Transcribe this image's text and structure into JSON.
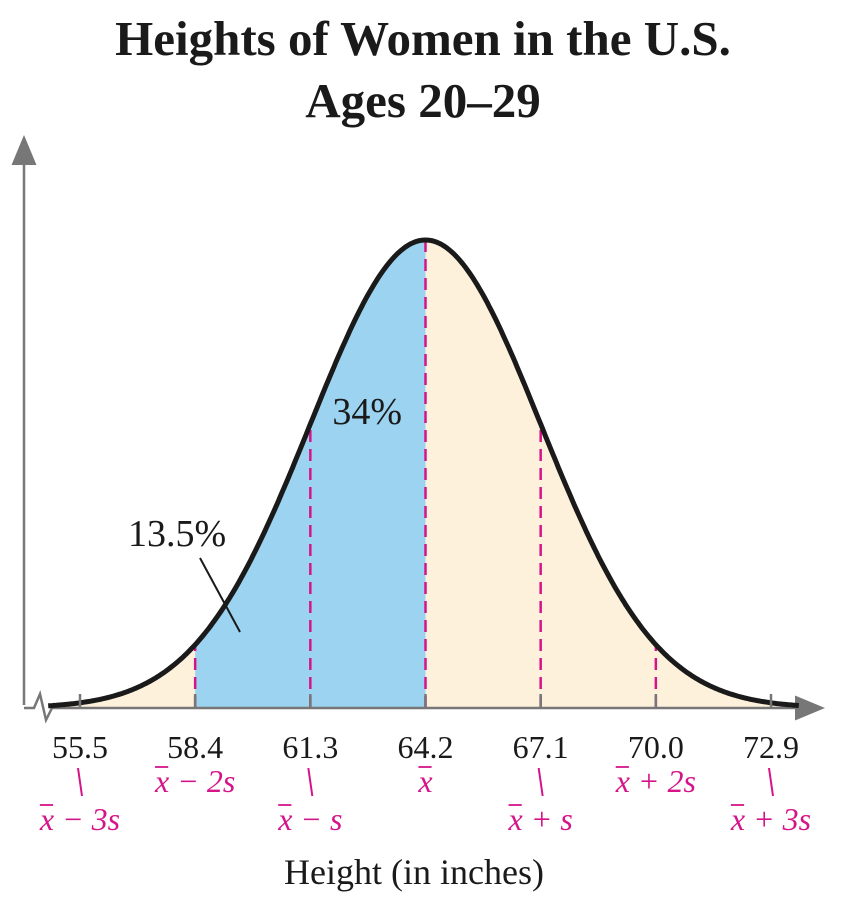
{
  "chart_data": {
    "type": "area",
    "title": "Heights of Women in the U.S.",
    "subtitle": "Ages 20–29",
    "xlabel": "Height (in inches)",
    "ylabel": "",
    "mean": 64.2,
    "sd": 2.9,
    "xlim": [
      54.7,
      73.6
    ],
    "ticks": [
      {
        "value": 55.5,
        "label": "55.5",
        "symbol_var": "x",
        "symbol_rest": "− 3s",
        "dashed": false
      },
      {
        "value": 58.4,
        "label": "58.4",
        "symbol_var": "x",
        "symbol_rest": "− 2s",
        "dashed": true
      },
      {
        "value": 61.3,
        "label": "61.3",
        "symbol_var": "x",
        "symbol_rest": "− s",
        "dashed": true
      },
      {
        "value": 64.2,
        "label": "64.2",
        "symbol_var": "x",
        "symbol_rest": "",
        "dashed": true
      },
      {
        "value": 67.1,
        "label": "67.1",
        "symbol_var": "x",
        "symbol_rest": "+ s",
        "dashed": true
      },
      {
        "value": 70.0,
        "label": "70.0",
        "symbol_var": "x",
        "symbol_rest": "+ 2s",
        "dashed": true
      },
      {
        "value": 72.9,
        "label": "72.9",
        "symbol_var": "x",
        "symbol_rest": "+ 3s",
        "dashed": false
      }
    ],
    "shaded_regions": [
      {
        "from": 58.4,
        "to": 64.2,
        "color": "#9bd3f0"
      }
    ],
    "annotations": [
      {
        "text": "34%",
        "region": [
          61.3,
          64.2
        ]
      },
      {
        "text": "13.5%",
        "region": [
          58.4,
          61.3
        ]
      }
    ],
    "colors": {
      "base_fill": "#fdf1dc",
      "shade_fill": "#9bd3f0",
      "curve": "#1a1a1a",
      "dashed": "#d6148a",
      "axis": "#777777",
      "symbols": "#d6148a"
    }
  }
}
